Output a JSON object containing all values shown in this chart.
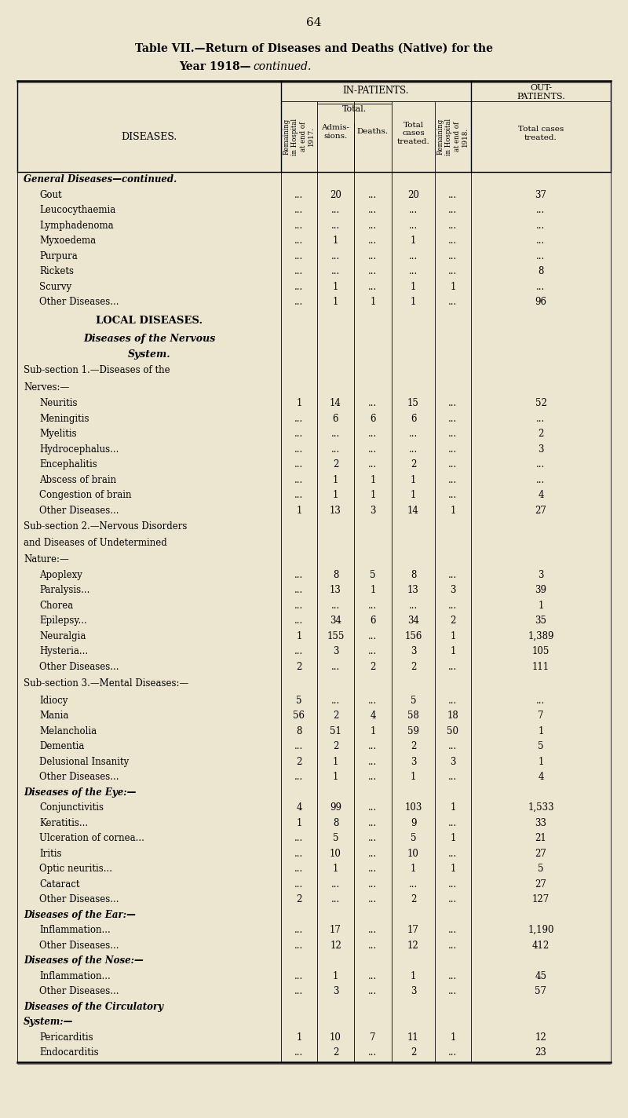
{
  "page_number": "64",
  "bg_color": "#ece6d0",
  "title1": "Table VII.—Return of Diseases and Deaths (Native) for the",
  "title2": "Year 1918—",
  "title2_italic": "continued.",
  "rows": [
    {
      "label": "General Diseases—continued.",
      "type": "section_italic_bold",
      "r17": "",
      "adm": "",
      "dth": "",
      "tot": "",
      "r18": "",
      "out": ""
    },
    {
      "label": "Gout",
      "type": "data",
      "r17": "...",
      "adm": "20",
      "dth": "...",
      "tot": "20",
      "r18": "...",
      "out": "37"
    },
    {
      "label": "Leucocythaemia",
      "type": "data",
      "r17": "...",
      "adm": "...",
      "dth": "...",
      "tot": "...",
      "r18": "...",
      "out": "..."
    },
    {
      "label": "Lymphadenoma",
      "type": "data",
      "r17": "...",
      "adm": "...",
      "dth": "...",
      "tot": "...",
      "r18": "...",
      "out": "..."
    },
    {
      "label": "Myxoedema",
      "type": "data",
      "r17": "...",
      "adm": "1",
      "dth": "...",
      "tot": "1",
      "r18": "...",
      "out": "..."
    },
    {
      "label": "Purpura",
      "type": "data",
      "r17": "...",
      "adm": "...",
      "dth": "...",
      "tot": "...",
      "r18": "...",
      "out": "..."
    },
    {
      "label": "Rickets",
      "type": "data",
      "r17": "...",
      "adm": "...",
      "dth": "...",
      "tot": "...",
      "r18": "...",
      "out": "8"
    },
    {
      "label": "Scurvy",
      "type": "data",
      "r17": "...",
      "adm": "1",
      "dth": "...",
      "tot": "1",
      "r18": "1",
      "out": "..."
    },
    {
      "label": "Other Diseases...",
      "type": "data",
      "r17": "...",
      "adm": "1",
      "dth": "1",
      "tot": "1",
      "r18": "...",
      "out": "96"
    },
    {
      "label": "LOCAL DISEASES.",
      "type": "section_bold_center",
      "r17": "",
      "adm": "",
      "dth": "",
      "tot": "",
      "r18": "",
      "out": ""
    },
    {
      "label": "Diseases of the Nervous|System.",
      "type": "section_italic_bold_center",
      "r17": "",
      "adm": "",
      "dth": "",
      "tot": "",
      "r18": "",
      "out": ""
    },
    {
      "label": "Sub-section 1.—Diseases of the|Nerves:—",
      "type": "subsection",
      "r17": "",
      "adm": "",
      "dth": "",
      "tot": "",
      "r18": "",
      "out": ""
    },
    {
      "label": "Neuritis",
      "type": "data",
      "r17": "1",
      "adm": "14",
      "dth": "...",
      "tot": "15",
      "r18": "...",
      "out": "52"
    },
    {
      "label": "Meningitis",
      "type": "data",
      "r17": "...",
      "adm": "6",
      "dth": "6",
      "tot": "6",
      "r18": "...",
      "out": "..."
    },
    {
      "label": "Myelitis",
      "type": "data",
      "r17": "...",
      "adm": "...",
      "dth": "...",
      "tot": "...",
      "r18": "...",
      "out": "2"
    },
    {
      "label": "Hydrocephalus...",
      "type": "data",
      "r17": "...",
      "adm": "...",
      "dth": "...",
      "tot": "...",
      "r18": "...",
      "out": "3"
    },
    {
      "label": "Encephalitis",
      "type": "data",
      "r17": "...",
      "adm": "2",
      "dth": "...",
      "tot": "2",
      "r18": "...",
      "out": "..."
    },
    {
      "label": "Abscess of brain",
      "type": "data",
      "r17": "...",
      "adm": "1",
      "dth": "1",
      "tot": "1",
      "r18": "...",
      "out": "..."
    },
    {
      "label": "Congestion of brain",
      "type": "data",
      "r17": "...",
      "adm": "1",
      "dth": "1",
      "tot": "1",
      "r18": "...",
      "out": "4"
    },
    {
      "label": "Other Diseases...",
      "type": "data",
      "r17": "1",
      "adm": "13",
      "dth": "3",
      "tot": "14",
      "r18": "1",
      "out": "27"
    },
    {
      "label": "Sub-section 2.—Nervous Disorders|and Diseases of Undetermined|Nature:—",
      "type": "subsection",
      "r17": "",
      "adm": "",
      "dth": "",
      "tot": "",
      "r18": "",
      "out": ""
    },
    {
      "label": "Apoplexy",
      "type": "data",
      "r17": "...",
      "adm": "8",
      "dth": "5",
      "tot": "8",
      "r18": "...",
      "out": "3"
    },
    {
      "label": "Paralysis...",
      "type": "data",
      "r17": "...",
      "adm": "13",
      "dth": "1",
      "tot": "13",
      "r18": "3",
      "out": "39"
    },
    {
      "label": "Chorea",
      "type": "data",
      "r17": "...",
      "adm": "...",
      "dth": "...",
      "tot": "...",
      "r18": "...",
      "out": "1"
    },
    {
      "label": "Epilepsy...",
      "type": "data",
      "r17": "...",
      "adm": "34",
      "dth": "6",
      "tot": "34",
      "r18": "2",
      "out": "35"
    },
    {
      "label": "Neuralgia",
      "type": "data",
      "r17": "1",
      "adm": "155",
      "dth": "...",
      "tot": "156",
      "r18": "1",
      "out": "1,389"
    },
    {
      "label": "Hysteria...",
      "type": "data",
      "r17": "...",
      "adm": "3",
      "dth": "...",
      "tot": "3",
      "r18": "1",
      "out": "105"
    },
    {
      "label": "Other Diseases...",
      "type": "data",
      "r17": "2",
      "adm": "...",
      "dth": "2",
      "tot": "2",
      "r18": "...",
      "out": "111"
    },
    {
      "label": "Sub-section 3.—Mental Diseases:—",
      "type": "subsection",
      "r17": "",
      "adm": "",
      "dth": "",
      "tot": "",
      "r18": "",
      "out": ""
    },
    {
      "label": "Idiocy",
      "type": "data",
      "r17": "5",
      "adm": "...",
      "dth": "...",
      "tot": "5",
      "r18": "...",
      "out": "..."
    },
    {
      "label": "Mania",
      "type": "data",
      "r17": "56",
      "adm": "2",
      "dth": "4",
      "tot": "58",
      "r18": "18",
      "out": "7"
    },
    {
      "label": "Melancholia",
      "type": "data",
      "r17": "8",
      "adm": "51",
      "dth": "1",
      "tot": "59",
      "r18": "50",
      "out": "1"
    },
    {
      "label": "Dementia",
      "type": "data",
      "r17": "...",
      "adm": "2",
      "dth": "...",
      "tot": "2",
      "r18": "...",
      "out": "5"
    },
    {
      "label": "Delusional Insanity",
      "type": "data",
      "r17": "2",
      "adm": "1",
      "dth": "...",
      "tot": "3",
      "r18": "3",
      "out": "1"
    },
    {
      "label": "Other Diseases...",
      "type": "data",
      "r17": "...",
      "adm": "1",
      "dth": "...",
      "tot": "1",
      "r18": "...",
      "out": "4"
    },
    {
      "label": "Diseases of the Eye:—",
      "type": "section_italic_bold",
      "r17": "",
      "adm": "",
      "dth": "",
      "tot": "",
      "r18": "",
      "out": ""
    },
    {
      "label": "Conjunctivitis",
      "type": "data",
      "r17": "4",
      "adm": "99",
      "dth": "...",
      "tot": "103",
      "r18": "1",
      "out": "1,533"
    },
    {
      "label": "Keratitis...",
      "type": "data",
      "r17": "1",
      "adm": "8",
      "dth": "...",
      "tot": "9",
      "r18": "...",
      "out": "33"
    },
    {
      "label": "Ulceration of cornea...",
      "type": "data",
      "r17": "...",
      "adm": "5",
      "dth": "...",
      "tot": "5",
      "r18": "1",
      "out": "21"
    },
    {
      "label": "Iritis",
      "type": "data",
      "r17": "...",
      "adm": "10",
      "dth": "...",
      "tot": "10",
      "r18": "...",
      "out": "27"
    },
    {
      "label": "Optic neuritis...",
      "type": "data",
      "r17": "...",
      "adm": "1",
      "dth": "...",
      "tot": "1",
      "r18": "1",
      "out": "5"
    },
    {
      "label": "Cataract",
      "type": "data",
      "r17": "...",
      "adm": "...",
      "dth": "...",
      "tot": "...",
      "r18": "...",
      "out": "27"
    },
    {
      "label": "Other Diseases...",
      "type": "data",
      "r17": "2",
      "adm": "...",
      "dth": "...",
      "tot": "2",
      "r18": "...",
      "out": "127"
    },
    {
      "label": "Diseases of the Ear:—",
      "type": "section_italic_bold",
      "r17": "",
      "adm": "",
      "dth": "",
      "tot": "",
      "r18": "",
      "out": ""
    },
    {
      "label": "Inflammation...",
      "type": "data",
      "r17": "...",
      "adm": "17",
      "dth": "...",
      "tot": "17",
      "r18": "...",
      "out": "1,190"
    },
    {
      "label": "Other Diseases...",
      "type": "data",
      "r17": "...",
      "adm": "12",
      "dth": "...",
      "tot": "12",
      "r18": "...",
      "out": "412"
    },
    {
      "label": "Diseases of the Nose:—",
      "type": "section_italic_bold",
      "r17": "",
      "adm": "",
      "dth": "",
      "tot": "",
      "r18": "",
      "out": ""
    },
    {
      "label": "Inflammation...",
      "type": "data",
      "r17": "...",
      "adm": "1",
      "dth": "...",
      "tot": "1",
      "r18": "...",
      "out": "45"
    },
    {
      "label": "Other Diseases...",
      "type": "data",
      "r17": "...",
      "adm": "3",
      "dth": "...",
      "tot": "3",
      "r18": "...",
      "out": "57"
    },
    {
      "label": "Diseases of the Circulatory|System:—",
      "type": "section_italic_bold",
      "r17": "",
      "adm": "",
      "dth": "",
      "tot": "",
      "r18": "",
      "out": ""
    },
    {
      "label": "Pericarditis",
      "type": "data",
      "r17": "1",
      "adm": "10",
      "dth": "7",
      "tot": "11",
      "r18": "1",
      "out": "12"
    },
    {
      "label": "Endocarditis",
      "type": "data",
      "r17": "...",
      "adm": "2",
      "dth": "...",
      "tot": "2",
      "r18": "...",
      "out": "23"
    }
  ]
}
